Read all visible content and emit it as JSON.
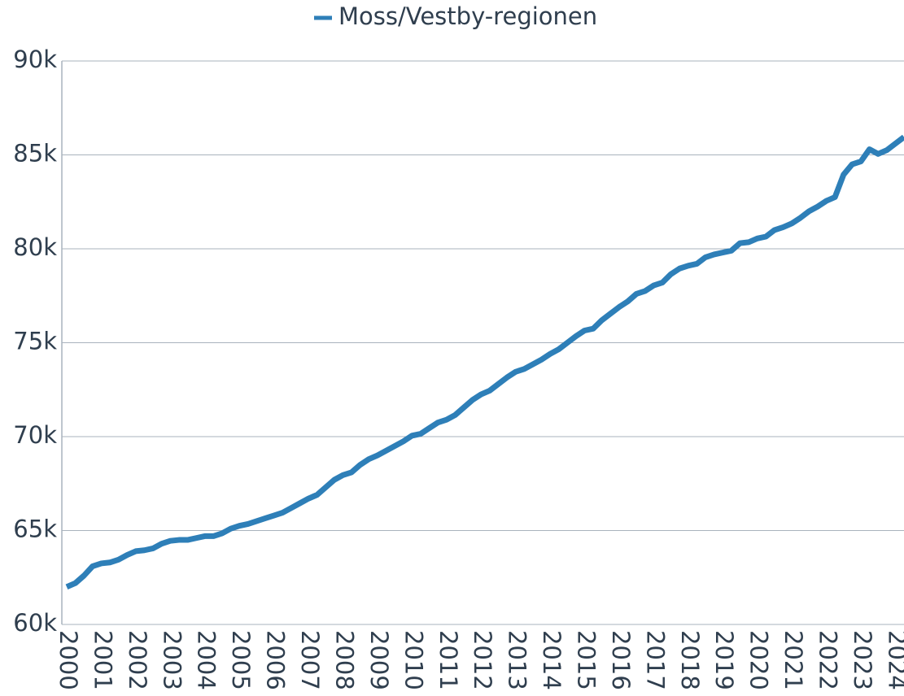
{
  "chart_data": {
    "type": "line",
    "categories": [
      "2000",
      null,
      null,
      null,
      "2001",
      null,
      null,
      null,
      "2002",
      null,
      null,
      null,
      "2003",
      null,
      null,
      null,
      "2004",
      null,
      null,
      null,
      "2005",
      null,
      null,
      null,
      "2006",
      null,
      null,
      null,
      "2007",
      null,
      null,
      null,
      "2008",
      null,
      null,
      null,
      "2009",
      null,
      null,
      null,
      "2010",
      null,
      null,
      null,
      "2011",
      null,
      null,
      null,
      "2012",
      null,
      null,
      null,
      "2013",
      null,
      null,
      null,
      "2014",
      null,
      null,
      null,
      "2015",
      null,
      null,
      null,
      "2016",
      null,
      null,
      null,
      "2017",
      null,
      null,
      null,
      "2018",
      null,
      null,
      null,
      "2019",
      null,
      null,
      null,
      "2020",
      null,
      null,
      null,
      "2021",
      null,
      null,
      null,
      "2022",
      null,
      null,
      null,
      "2023",
      null,
      null,
      null,
      "2024",
      null
    ],
    "series": [
      {
        "name": "Moss/Vestby-regionen",
        "color": "#2e7fb8",
        "values": [
          62000,
          62200,
          62600,
          63100,
          63250,
          63300,
          63450,
          63700,
          63900,
          63950,
          64050,
          64300,
          64450,
          64500,
          64500,
          64600,
          64700,
          64700,
          64850,
          65100,
          65250,
          65350,
          65500,
          65650,
          65800,
          65950,
          66200,
          66450,
          66700,
          66900,
          67300,
          67700,
          67950,
          68100,
          68500,
          68800,
          69000,
          69250,
          69500,
          69750,
          70050,
          70150,
          70450,
          70750,
          70900,
          71150,
          71550,
          71950,
          72250,
          72450,
          72800,
          73150,
          73450,
          73600,
          73850,
          74100,
          74400,
          74650,
          75000,
          75350,
          75650,
          75750,
          76200,
          76550,
          76900,
          77200,
          77600,
          77750,
          78050,
          78200,
          78650,
          78950,
          79100,
          79200,
          79550,
          79700,
          79800,
          79900,
          80300,
          80350,
          80550,
          80650,
          81000,
          81150,
          81350,
          81650,
          82000,
          82250,
          82550,
          82750,
          83950,
          84500,
          84650,
          85300,
          85050,
          85250,
          85600,
          85950
        ]
      }
    ],
    "ylim": [
      60000,
      90000
    ],
    "yticks": [
      {
        "value": 60000,
        "label": "60k"
      },
      {
        "value": 65000,
        "label": "65k"
      },
      {
        "value": 70000,
        "label": "70k"
      },
      {
        "value": 75000,
        "label": "75k"
      },
      {
        "value": 80000,
        "label": "80k"
      },
      {
        "value": 85000,
        "label": "85k"
      },
      {
        "value": 90000,
        "label": "90k"
      }
    ],
    "grid": true,
    "legend": "top"
  }
}
